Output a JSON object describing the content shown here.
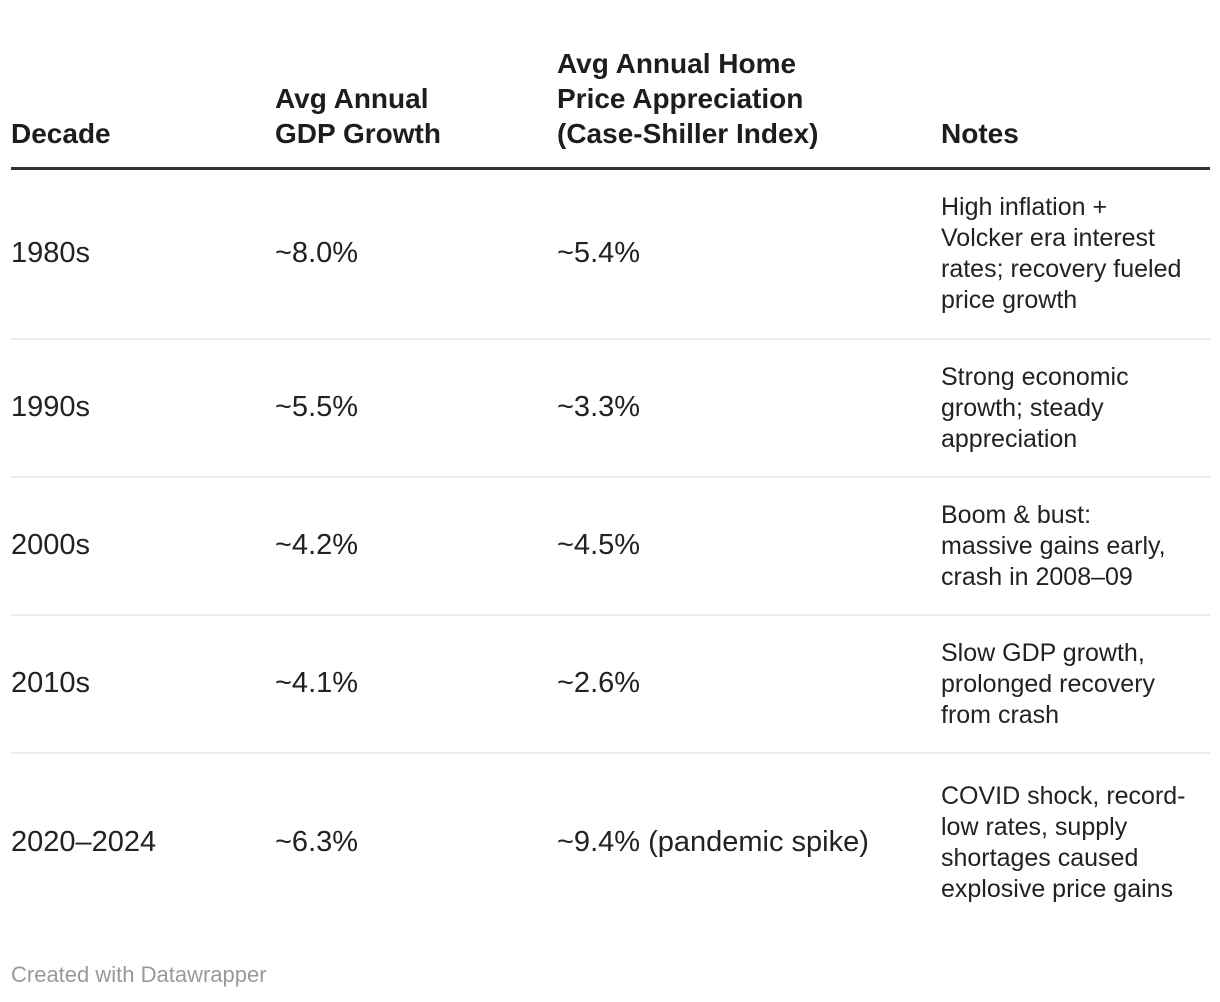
{
  "chart_data": {
    "type": "table",
    "columns": [
      "Decade",
      "Avg Annual GDP Growth",
      "Avg Annual Home Price Appreciation (Case-Shiller Index)",
      "Notes"
    ],
    "columns_display": [
      "Decade",
      "Avg Annual\nGDP Growth",
      "Avg Annual Home\nPrice Appreciation\n(Case-Shiller Index)",
      "Notes"
    ],
    "rows": [
      {
        "decade": "1980s",
        "gdp_display": "~8.0%",
        "gdp_growth_pct": 8.0,
        "home_display": "~5.4%",
        "home_appreciation_pct": 5.4,
        "notes": "High inflation +\nVolcker era interest\nrates; recovery fueled\nprice growth"
      },
      {
        "decade": "1990s",
        "gdp_display": "~5.5%",
        "gdp_growth_pct": 5.5,
        "home_display": "~3.3%",
        "home_appreciation_pct": 3.3,
        "notes": "Strong economic\ngrowth; steady\nappreciation"
      },
      {
        "decade": "2000s",
        "gdp_display": "~4.2%",
        "gdp_growth_pct": 4.2,
        "home_display": "~4.5%",
        "home_appreciation_pct": 4.5,
        "notes": "Boom & bust:\nmassive gains early,\ncrash in 2008–09"
      },
      {
        "decade": "2010s",
        "gdp_display": "~4.1%",
        "gdp_growth_pct": 4.1,
        "home_display": "~2.6%",
        "home_appreciation_pct": 2.6,
        "notes": "Slow GDP growth,\nprolonged recovery\nfrom crash"
      },
      {
        "decade": "2020–2024",
        "gdp_display": "~6.3%",
        "gdp_growth_pct": 6.3,
        "home_display": "~9.4% (pandemic spike)",
        "home_appreciation_pct": 9.4,
        "notes": "COVID shock, record-\nlow rates, supply\nshortages caused\nexplosive price gains"
      }
    ]
  },
  "footer": {
    "attribution": "Created with Datawrapper"
  },
  "colors": {
    "background": "#ffffff",
    "text": "#222222",
    "header_text": "#1d1d1d",
    "header_rule": "#333333",
    "row_divider": "#ebebeb",
    "muted": "#999999"
  }
}
